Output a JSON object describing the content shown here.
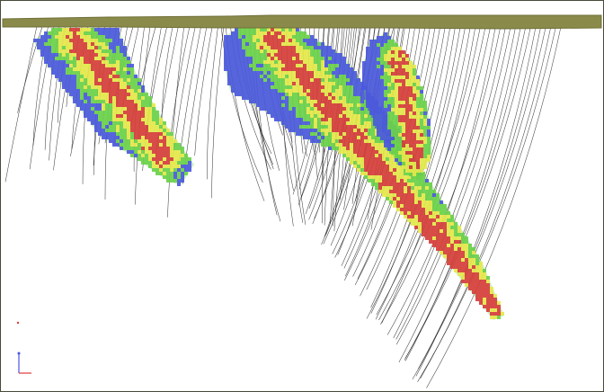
{
  "view": {
    "type": "3d-section-viewport",
    "subject": "drillhole-traces-and-block-model-section",
    "palette": {
      "background": "#ffffff",
      "frame": "#4a4a3a",
      "topography": "#8a8a4a",
      "drill_trace": "#202020",
      "grade_low": "#4a55e0",
      "grade_mid_low": "#6ad04a",
      "grade_mid_high": "#e8e84a",
      "grade_high": "#d83a3a",
      "axis_x": "#e03a3a",
      "axis_y": "#4a55e0"
    },
    "icons": [
      "topography-surface",
      "drill-hole-trace",
      "orebody-lens",
      "axis-triad-icon"
    ]
  }
}
